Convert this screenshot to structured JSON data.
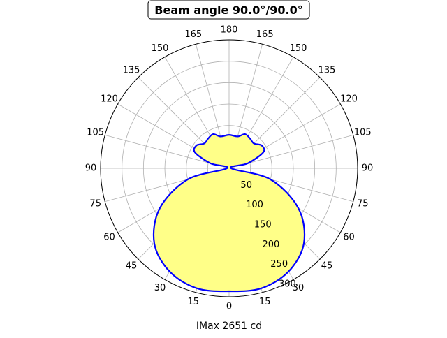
{
  "chart_data": {
    "type": "polar-line",
    "title": "Beam angle 90.0°/90.0°",
    "xlabel": "IMax 2651 cd",
    "angle_labels": [
      "0",
      "15",
      "30",
      "45",
      "60",
      "75",
      "90",
      "105",
      "120",
      "135",
      "150",
      "165",
      "180",
      "165",
      "150",
      "135",
      "120",
      "105",
      "90",
      "75",
      "60",
      "45",
      "30",
      "15"
    ],
    "radial_ticks": [
      50,
      100,
      150,
      200,
      250,
      300
    ],
    "rlim": [
      0,
      300
    ],
    "grid": true,
    "line_color": "#0000ff",
    "fill_color": "#ffff88",
    "series": [
      {
        "angles_deg": [
          0,
          15,
          30,
          45,
          60,
          75,
          90,
          105,
          115,
          125,
          135,
          145,
          155,
          165,
          180
        ],
        "values": [
          287,
          290,
          278,
          247,
          187,
          100,
          5,
          45,
          88,
          93,
          82,
          85,
          88,
          77,
          78
        ]
      }
    ]
  }
}
